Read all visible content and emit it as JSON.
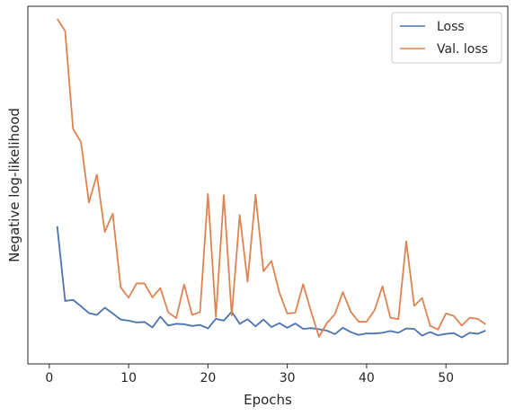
{
  "chart_data": {
    "type": "line",
    "title": "",
    "xlabel": "Epochs",
    "ylabel": "Negative log-likelihood",
    "xlim": [
      -2.7,
      57.8
    ],
    "ylim": [
      0.0,
      1.0
    ],
    "xticks": [
      0,
      10,
      20,
      30,
      40,
      50
    ],
    "yticks": [],
    "grid": false,
    "legend_position": "top-right",
    "x": [
      1,
      2,
      3,
      4,
      5,
      6,
      7,
      8,
      9,
      10,
      11,
      12,
      13,
      14,
      15,
      16,
      17,
      18,
      19,
      20,
      21,
      22,
      23,
      24,
      25,
      26,
      27,
      28,
      29,
      30,
      31,
      32,
      33,
      34,
      35,
      36,
      37,
      38,
      39,
      40,
      41,
      42,
      43,
      44,
      45,
      46,
      47,
      48,
      49,
      50,
      51,
      52,
      53,
      54,
      55
    ],
    "series": [
      {
        "name": "Loss",
        "color": "#4c72b0",
        "values": [
          0.385,
          0.176,
          0.179,
          0.161,
          0.142,
          0.137,
          0.157,
          0.141,
          0.124,
          0.121,
          0.116,
          0.117,
          0.102,
          0.132,
          0.107,
          0.112,
          0.111,
          0.106,
          0.109,
          0.099,
          0.126,
          0.121,
          0.146,
          0.112,
          0.125,
          0.105,
          0.124,
          0.103,
          0.114,
          0.101,
          0.113,
          0.098,
          0.1,
          0.097,
          0.093,
          0.083,
          0.101,
          0.089,
          0.081,
          0.085,
          0.085,
          0.087,
          0.092,
          0.087,
          0.099,
          0.098,
          0.079,
          0.089,
          0.08,
          0.084,
          0.086,
          0.074,
          0.087,
          0.084,
          0.093
        ]
      },
      {
        "name": "Val. loss",
        "color": "#dd8452",
        "values": [
          0.965,
          0.931,
          0.657,
          0.62,
          0.451,
          0.529,
          0.369,
          0.42,
          0.214,
          0.185,
          0.225,
          0.225,
          0.186,
          0.212,
          0.144,
          0.128,
          0.222,
          0.137,
          0.145,
          0.475,
          0.131,
          0.472,
          0.135,
          0.416,
          0.23,
          0.473,
          0.259,
          0.288,
          0.2,
          0.141,
          0.143,
          0.223,
          0.146,
          0.076,
          0.114,
          0.139,
          0.201,
          0.146,
          0.118,
          0.118,
          0.15,
          0.217,
          0.129,
          0.125,
          0.343,
          0.162,
          0.184,
          0.107,
          0.096,
          0.141,
          0.134,
          0.107,
          0.129,
          0.126,
          0.111
        ]
      }
    ]
  }
}
